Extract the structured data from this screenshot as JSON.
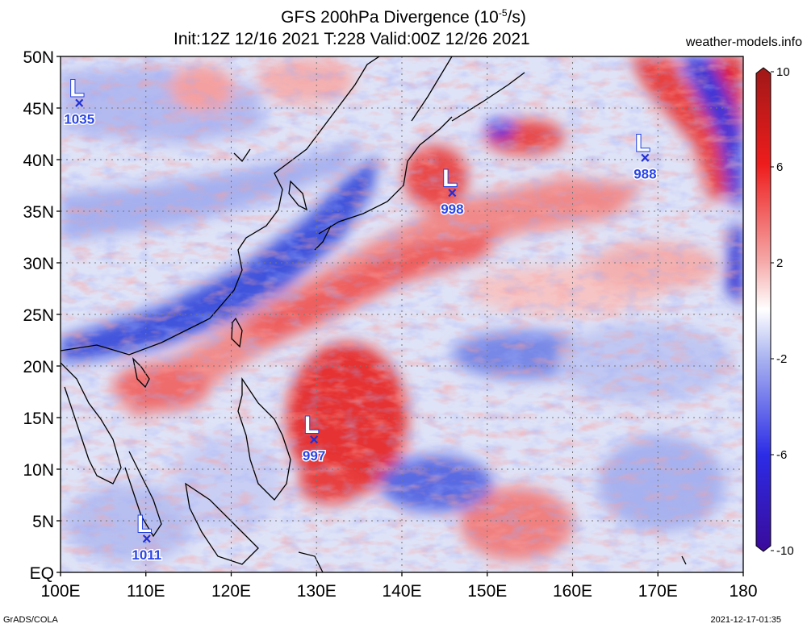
{
  "title": {
    "line1_prefix": "GFS 200hPa Divergence (10",
    "line1_exp": "-5",
    "line1_suffix": "/s)",
    "line2": "Init:12Z 12/16 2021 T:228 Valid:00Z 12/26 2021"
  },
  "website": "weather-models.info",
  "credit": "GrADS/COLA",
  "timestamp": "2021-12-17-01:35",
  "axes": {
    "lon_ticks": [
      "100E",
      "110E",
      "120E",
      "130E",
      "140E",
      "150E",
      "160E",
      "170E",
      "180"
    ],
    "lat_ticks": [
      "50N",
      "45N",
      "40N",
      "35N",
      "30N",
      "25N",
      "20N",
      "15N",
      "10N",
      "5N",
      "EQ"
    ],
    "lon_range": [
      100,
      180
    ],
    "lat_range": [
      0,
      50
    ]
  },
  "colorbar": {
    "ticks": [
      "10",
      "6",
      "2",
      "-2",
      "-6",
      "-10"
    ],
    "colors": [
      "#a01818",
      "#ee1c1c",
      "#f5a8a8",
      "#ffffff",
      "#aab4f0",
      "#2c2ce6",
      "#3a0a9a"
    ]
  },
  "lows": [
    {
      "lon": 102.2,
      "lat": 45.5,
      "pressure": "1035",
      "letter": "L",
      "mark": "×"
    },
    {
      "lon": 145.9,
      "lat": 36.8,
      "pressure": "998",
      "letter": "L",
      "mark": "×"
    },
    {
      "lon": 168.5,
      "lat": 40.2,
      "pressure": "988",
      "letter": "L",
      "mark": "×"
    },
    {
      "lon": 129.7,
      "lat": 12.9,
      "pressure": "997",
      "letter": "L",
      "mark": "×"
    },
    {
      "lon": 110.1,
      "lat": 3.3,
      "pressure": "1011",
      "letter": "L",
      "mark": "×"
    }
  ]
}
